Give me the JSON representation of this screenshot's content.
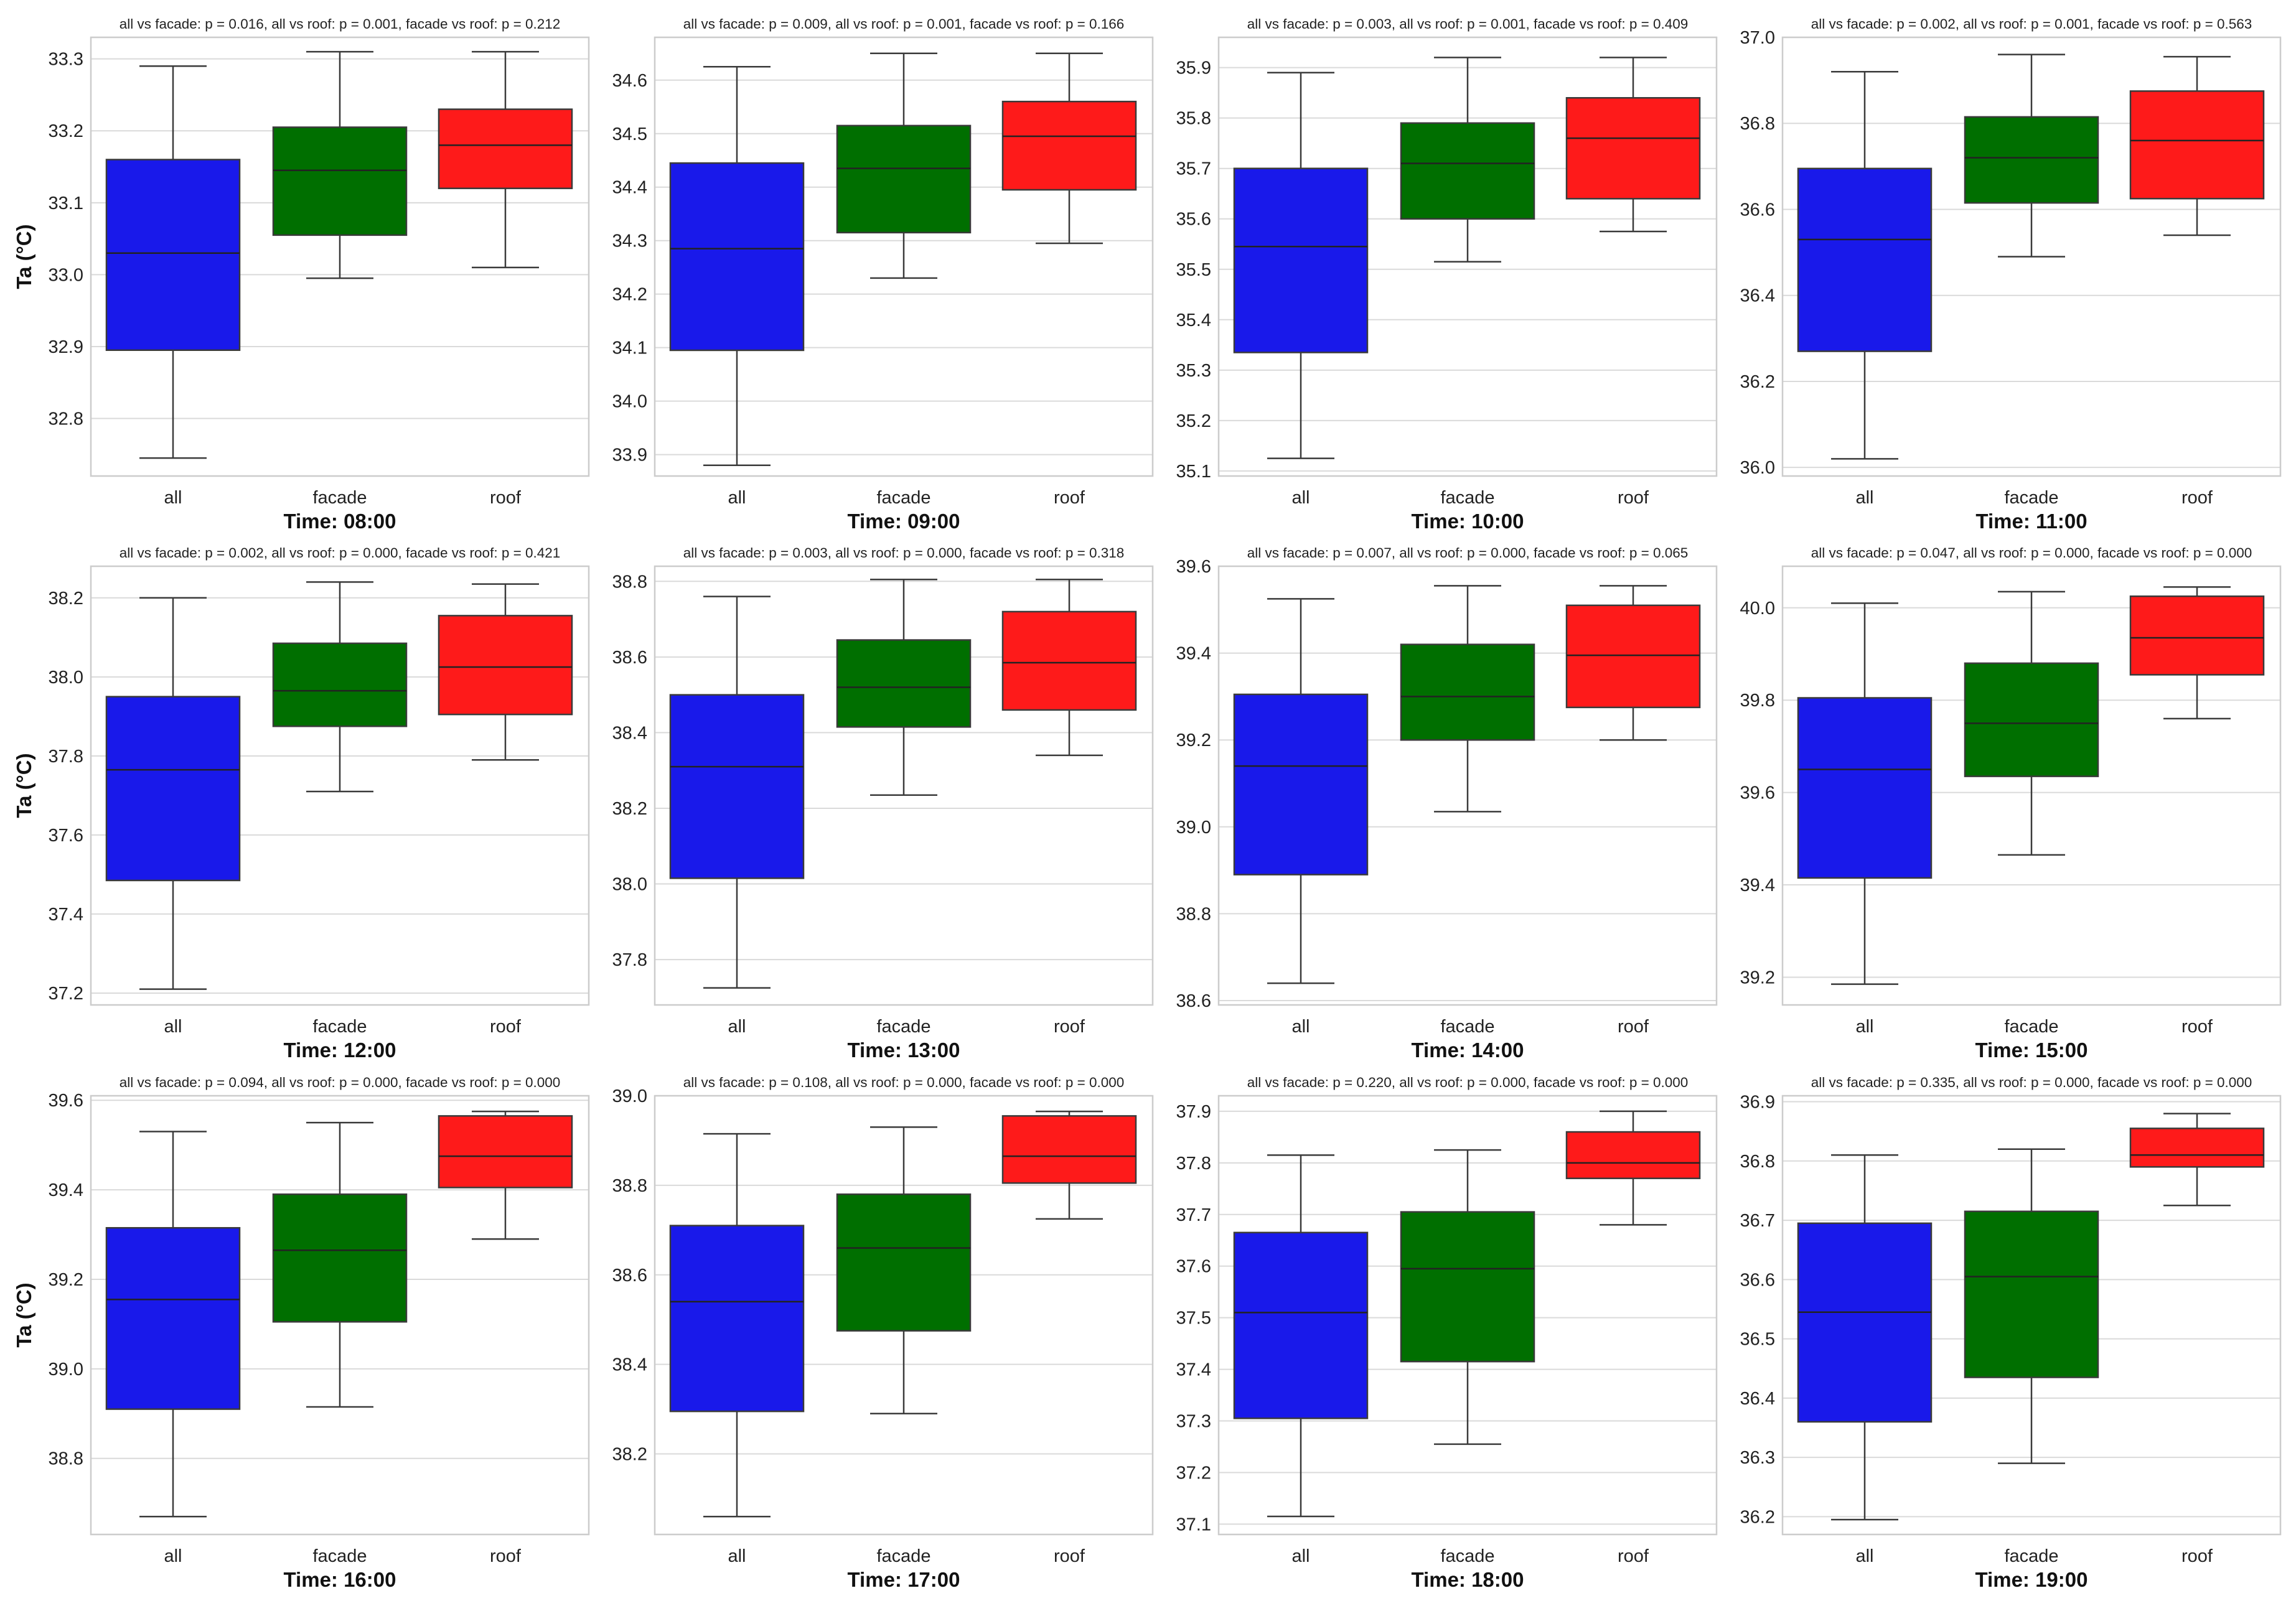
{
  "y_axis_label": "Ta (°C)",
  "group_colors": {
    "all": "#1919ea",
    "facade": "#006f00",
    "roof": "#fe1a1a"
  },
  "chart_data": [
    {
      "type": "box",
      "title": "all vs facade: p = 0.016, all vs roof: p = 0.001, facade vs roof: p = 0.212",
      "xlabel": "Time: 08:00",
      "ylabel": "Ta (°C)",
      "categories": [
        "all",
        "facade",
        "roof"
      ],
      "ylim": [
        32.72,
        33.33
      ],
      "yticks": [
        32.8,
        32.9,
        33.0,
        33.1,
        33.2,
        33.3
      ],
      "series": [
        {
          "name": "all",
          "whislo": 32.745,
          "q1": 32.895,
          "med": 33.03,
          "q3": 33.16,
          "whishi": 33.29
        },
        {
          "name": "facade",
          "whislo": 32.995,
          "q1": 33.055,
          "med": 33.145,
          "q3": 33.205,
          "whishi": 33.31
        },
        {
          "name": "roof",
          "whislo": 33.01,
          "q1": 33.12,
          "med": 33.18,
          "q3": 33.23,
          "whishi": 33.31
        }
      ]
    },
    {
      "type": "box",
      "title": "all vs facade: p = 0.009, all vs roof: p = 0.001, facade vs roof: p = 0.166",
      "xlabel": "Time: 09:00",
      "ylabel": "",
      "categories": [
        "all",
        "facade",
        "roof"
      ],
      "ylim": [
        33.86,
        34.68
      ],
      "yticks": [
        33.9,
        34.0,
        34.1,
        34.2,
        34.3,
        34.4,
        34.5,
        34.6
      ],
      "series": [
        {
          "name": "all",
          "whislo": 33.88,
          "q1": 34.095,
          "med": 34.285,
          "q3": 34.445,
          "whishi": 34.625
        },
        {
          "name": "facade",
          "whislo": 34.23,
          "q1": 34.315,
          "med": 34.435,
          "q3": 34.515,
          "whishi": 34.65
        },
        {
          "name": "roof",
          "whislo": 34.295,
          "q1": 34.395,
          "med": 34.495,
          "q3": 34.56,
          "whishi": 34.65
        }
      ]
    },
    {
      "type": "box",
      "title": "all vs facade: p = 0.003, all vs roof: p = 0.001, facade vs roof: p = 0.409",
      "xlabel": "Time: 10:00",
      "ylabel": "",
      "categories": [
        "all",
        "facade",
        "roof"
      ],
      "ylim": [
        35.09,
        35.96
      ],
      "yticks": [
        35.1,
        35.2,
        35.3,
        35.4,
        35.5,
        35.6,
        35.7,
        35.8,
        35.9
      ],
      "series": [
        {
          "name": "all",
          "whislo": 35.125,
          "q1": 35.335,
          "med": 35.545,
          "q3": 35.7,
          "whishi": 35.89
        },
        {
          "name": "facade",
          "whislo": 35.515,
          "q1": 35.6,
          "med": 35.71,
          "q3": 35.79,
          "whishi": 35.92
        },
        {
          "name": "roof",
          "whislo": 35.575,
          "q1": 35.64,
          "med": 35.76,
          "q3": 35.84,
          "whishi": 35.92
        }
      ]
    },
    {
      "type": "box",
      "title": "all vs facade: p = 0.002, all vs roof: p = 0.001, facade vs roof: p = 0.563",
      "xlabel": "Time: 11:00",
      "ylabel": "",
      "categories": [
        "all",
        "facade",
        "roof"
      ],
      "ylim": [
        35.98,
        37.0
      ],
      "yticks": [
        36.0,
        36.2,
        36.4,
        36.6,
        36.8,
        37.0
      ],
      "series": [
        {
          "name": "all",
          "whislo": 36.02,
          "q1": 36.27,
          "med": 36.53,
          "q3": 36.695,
          "whishi": 36.92
        },
        {
          "name": "facade",
          "whislo": 36.49,
          "q1": 36.615,
          "med": 36.72,
          "q3": 36.815,
          "whishi": 36.96
        },
        {
          "name": "roof",
          "whislo": 36.54,
          "q1": 36.625,
          "med": 36.76,
          "q3": 36.875,
          "whishi": 36.955
        }
      ]
    },
    {
      "type": "box",
      "title": "all vs facade: p = 0.002, all vs roof: p = 0.000, facade vs roof: p = 0.421",
      "xlabel": "Time: 12:00",
      "ylabel": "Ta (°C)",
      "categories": [
        "all",
        "facade",
        "roof"
      ],
      "ylim": [
        37.17,
        38.28
      ],
      "yticks": [
        37.2,
        37.4,
        37.6,
        37.8,
        38.0,
        38.2
      ],
      "series": [
        {
          "name": "all",
          "whislo": 37.21,
          "q1": 37.485,
          "med": 37.765,
          "q3": 37.95,
          "whishi": 38.2
        },
        {
          "name": "facade",
          "whislo": 37.71,
          "q1": 37.875,
          "med": 37.965,
          "q3": 38.085,
          "whishi": 38.24
        },
        {
          "name": "roof",
          "whislo": 37.79,
          "q1": 37.905,
          "med": 38.025,
          "q3": 38.155,
          "whishi": 38.235
        }
      ]
    },
    {
      "type": "box",
      "title": "all vs facade: p = 0.003, all vs roof: p = 0.000, facade vs roof: p = 0.318",
      "xlabel": "Time: 13:00",
      "ylabel": "",
      "categories": [
        "all",
        "facade",
        "roof"
      ],
      "ylim": [
        37.68,
        38.84
      ],
      "yticks": [
        37.8,
        38.0,
        38.2,
        38.4,
        38.6,
        38.8
      ],
      "series": [
        {
          "name": "all",
          "whislo": 37.725,
          "q1": 38.015,
          "med": 38.31,
          "q3": 38.5,
          "whishi": 38.76
        },
        {
          "name": "facade",
          "whislo": 38.235,
          "q1": 38.415,
          "med": 38.52,
          "q3": 38.645,
          "whishi": 38.805
        },
        {
          "name": "roof",
          "whislo": 38.34,
          "q1": 38.46,
          "med": 38.585,
          "q3": 38.72,
          "whishi": 38.805
        }
      ]
    },
    {
      "type": "box",
      "title": "all vs facade: p = 0.007, all vs roof: p = 0.000, facade vs roof: p = 0.065",
      "xlabel": "Time: 14:00",
      "ylabel": "",
      "categories": [
        "all",
        "facade",
        "roof"
      ],
      "ylim": [
        38.59,
        39.6
      ],
      "yticks": [
        38.6,
        38.8,
        39.0,
        39.2,
        39.4,
        39.6
      ],
      "series": [
        {
          "name": "all",
          "whislo": 38.64,
          "q1": 38.89,
          "med": 39.14,
          "q3": 39.305,
          "whishi": 39.525
        },
        {
          "name": "facade",
          "whislo": 39.035,
          "q1": 39.2,
          "med": 39.3,
          "q3": 39.42,
          "whishi": 39.555
        },
        {
          "name": "roof",
          "whislo": 39.2,
          "q1": 39.275,
          "med": 39.395,
          "q3": 39.51,
          "whishi": 39.555
        }
      ]
    },
    {
      "type": "box",
      "title": "all vs facade: p = 0.047, all vs roof: p = 0.000, facade vs roof: p = 0.000",
      "xlabel": "Time: 15:00",
      "ylabel": "",
      "categories": [
        "all",
        "facade",
        "roof"
      ],
      "ylim": [
        39.14,
        40.09
      ],
      "yticks": [
        39.2,
        39.4,
        39.6,
        39.8,
        40.0
      ],
      "series": [
        {
          "name": "all",
          "whislo": 39.185,
          "q1": 39.415,
          "med": 39.65,
          "q3": 39.805,
          "whishi": 40.01
        },
        {
          "name": "facade",
          "whislo": 39.465,
          "q1": 39.635,
          "med": 39.75,
          "q3": 39.88,
          "whishi": 40.035
        },
        {
          "name": "roof",
          "whislo": 39.76,
          "q1": 39.855,
          "med": 39.935,
          "q3": 40.025,
          "whishi": 40.045
        }
      ]
    },
    {
      "type": "box",
      "title": "all vs facade: p = 0.094, all vs roof: p = 0.000, facade vs roof: p = 0.000",
      "xlabel": "Time: 16:00",
      "ylabel": "Ta (°C)",
      "categories": [
        "all",
        "facade",
        "roof"
      ],
      "ylim": [
        38.63,
        39.61
      ],
      "yticks": [
        38.8,
        39.0,
        39.2,
        39.4,
        39.6
      ],
      "series": [
        {
          "name": "all",
          "whislo": 38.67,
          "q1": 38.91,
          "med": 39.155,
          "q3": 39.315,
          "whishi": 39.53
        },
        {
          "name": "facade",
          "whislo": 38.915,
          "q1": 39.105,
          "med": 39.265,
          "q3": 39.39,
          "whishi": 39.55
        },
        {
          "name": "roof",
          "whislo": 39.29,
          "q1": 39.405,
          "med": 39.475,
          "q3": 39.565,
          "whishi": 39.575
        }
      ]
    },
    {
      "type": "box",
      "title": "all vs facade: p = 0.108, all vs roof: p = 0.000, facade vs roof: p = 0.000",
      "xlabel": "Time: 17:00",
      "ylabel": "",
      "categories": [
        "all",
        "facade",
        "roof"
      ],
      "ylim": [
        38.02,
        39.0
      ],
      "yticks": [
        38.2,
        38.4,
        38.6,
        38.8,
        39.0
      ],
      "series": [
        {
          "name": "all",
          "whislo": 38.06,
          "q1": 38.295,
          "med": 38.54,
          "q3": 38.71,
          "whishi": 38.915
        },
        {
          "name": "facade",
          "whislo": 38.29,
          "q1": 38.475,
          "med": 38.66,
          "q3": 38.78,
          "whishi": 38.93
        },
        {
          "name": "roof",
          "whislo": 38.725,
          "q1": 38.805,
          "med": 38.865,
          "q3": 38.955,
          "whishi": 38.965
        }
      ]
    },
    {
      "type": "box",
      "title": "all vs facade: p = 0.220, all vs roof: p = 0.000, facade vs roof: p = 0.000",
      "xlabel": "Time: 18:00",
      "ylabel": "",
      "categories": [
        "all",
        "facade",
        "roof"
      ],
      "ylim": [
        37.08,
        37.93
      ],
      "yticks": [
        37.1,
        37.2,
        37.3,
        37.4,
        37.5,
        37.6,
        37.7,
        37.8,
        37.9
      ],
      "series": [
        {
          "name": "all",
          "whislo": 37.115,
          "q1": 37.305,
          "med": 37.51,
          "q3": 37.665,
          "whishi": 37.815
        },
        {
          "name": "facade",
          "whislo": 37.255,
          "q1": 37.415,
          "med": 37.595,
          "q3": 37.705,
          "whishi": 37.825
        },
        {
          "name": "roof",
          "whislo": 37.68,
          "q1": 37.77,
          "med": 37.8,
          "q3": 37.86,
          "whishi": 37.9
        }
      ]
    },
    {
      "type": "box",
      "title": "all vs facade: p = 0.335, all vs roof: p = 0.000, facade vs roof: p = 0.000",
      "xlabel": "Time: 19:00",
      "ylabel": "",
      "categories": [
        "all",
        "facade",
        "roof"
      ],
      "ylim": [
        36.17,
        36.91
      ],
      "yticks": [
        36.2,
        36.3,
        36.4,
        36.5,
        36.6,
        36.7,
        36.8,
        36.9
      ],
      "series": [
        {
          "name": "all",
          "whislo": 36.195,
          "q1": 36.36,
          "med": 36.545,
          "q3": 36.695,
          "whishi": 36.81
        },
        {
          "name": "facade",
          "whislo": 36.29,
          "q1": 36.435,
          "med": 36.605,
          "q3": 36.715,
          "whishi": 36.82
        },
        {
          "name": "roof",
          "whislo": 36.725,
          "q1": 36.79,
          "med": 36.81,
          "q3": 36.855,
          "whishi": 36.88
        }
      ]
    }
  ]
}
